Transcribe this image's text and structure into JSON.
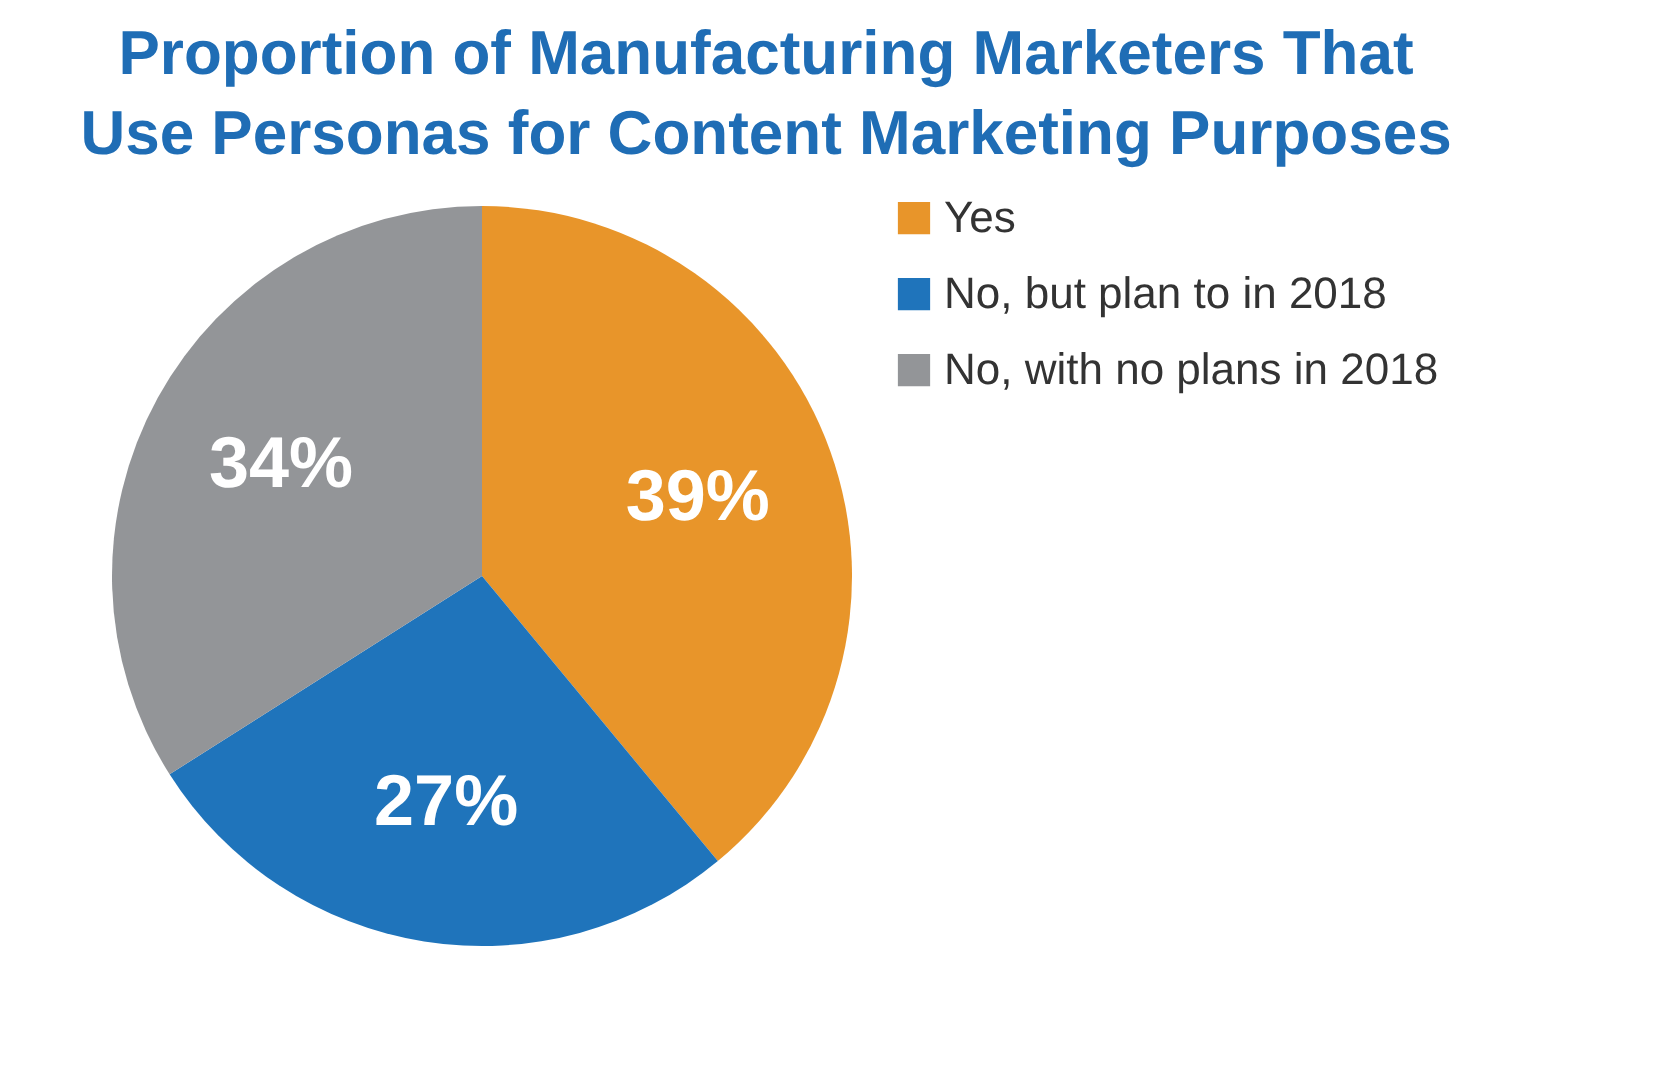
{
  "chart_data": {
    "type": "pie",
    "title": "Proportion of Manufacturing Marketers That Use Personas for Content Marketing Purposes",
    "categories": [
      "Yes",
      "No, but plan to in 2018",
      "No, with no plans in 2018"
    ],
    "values": [
      39,
      27,
      34
    ],
    "colors": [
      "#e8952a",
      "#1f74bb",
      "#939598"
    ],
    "value_labels": [
      "39%",
      "27%",
      "34%"
    ],
    "legend": "right"
  }
}
